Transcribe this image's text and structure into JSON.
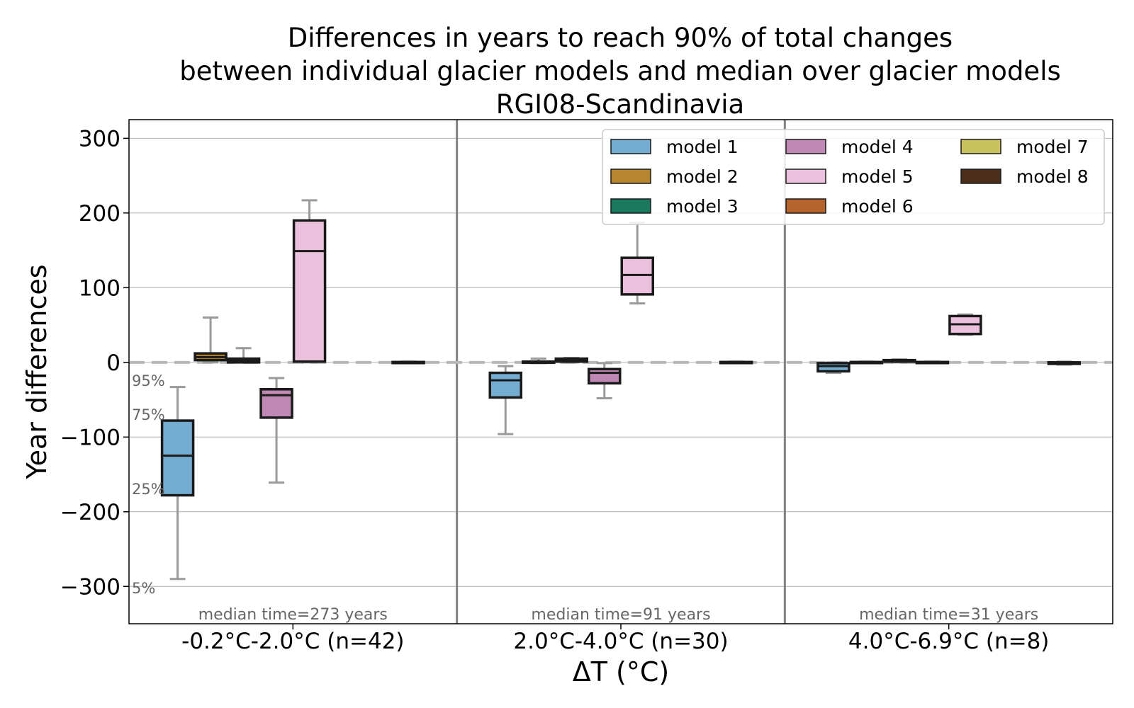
{
  "chart_data": {
    "type": "box",
    "title": [
      "Differences in years to reach 90% of total changes",
      "between individual glacier models and median over glacier models",
      "RGI08-Scandinavia"
    ],
    "xlabel": "ΔT (°C)",
    "ylabel": "Year differences",
    "ylim": [
      -350,
      325
    ],
    "yticks": [
      300,
      200,
      100,
      0,
      -100,
      -200,
      -300
    ],
    "ytick_labels": [
      "300",
      "200",
      "100",
      "0",
      "−100",
      "−200",
      "−300"
    ],
    "grid": true,
    "legend_position": "top-right",
    "percentile_labels": [
      "95%",
      "75%",
      "25%",
      "5%"
    ],
    "categories": [
      "-0.2°C-2.0°C (n=42)",
      "2.0°C-4.0°C (n=30)",
      "4.0°C-6.9°C (n=8)"
    ],
    "annotations": [
      "median time=273 years",
      "median time=91 years",
      "median time=31 years"
    ],
    "series": [
      {
        "name": "model 1",
        "color": "#74add1",
        "boxes": [
          {
            "p5": -290,
            "q1": -178,
            "median": -125,
            "q3": -78,
            "p95": -33
          },
          {
            "p5": -96,
            "q1": -47,
            "median": -24,
            "q3": -14,
            "p95": -5
          },
          {
            "p5": -14,
            "q1": -12,
            "median": -5,
            "q3": -1,
            "p95": 0
          }
        ]
      },
      {
        "name": "model 2",
        "color": "#b5862f",
        "boxes": [
          {
            "p5": 0,
            "q1": 3,
            "median": 7,
            "q3": 12,
            "p95": 60
          },
          {
            "p5": -1,
            "q1": -0.5,
            "median": 0,
            "q3": 1,
            "p95": 5
          },
          {
            "p5": -1,
            "q1": -0.5,
            "median": 0,
            "q3": 0.5,
            "p95": 1
          }
        ]
      },
      {
        "name": "model 3",
        "color": "#1b7a5e",
        "boxes": [
          {
            "p5": 0,
            "q1": 0,
            "median": 2,
            "q3": 5,
            "p95": 19
          },
          {
            "p5": 0,
            "q1": 1,
            "median": 3,
            "q3": 5,
            "p95": 6
          },
          {
            "p5": 0,
            "q1": 1,
            "median": 2,
            "q3": 3,
            "p95": 4
          }
        ]
      },
      {
        "name": "model 4",
        "color": "#bf88b5",
        "boxes": [
          {
            "p5": -161,
            "q1": -74,
            "median": -44,
            "q3": -36,
            "p95": -21
          },
          {
            "p5": -48,
            "q1": -28,
            "median": -14,
            "q3": -9,
            "p95": -1
          },
          {
            "p5": -1,
            "q1": -0.5,
            "median": 0,
            "q3": 0.5,
            "p95": 1
          }
        ]
      },
      {
        "name": "model 5",
        "color": "#ebc0dc",
        "boxes": [
          {
            "p5": 0,
            "q1": 1,
            "median": 149,
            "q3": 190,
            "p95": 217
          },
          {
            "p5": 79,
            "q1": 91,
            "median": 117,
            "q3": 140,
            "p95": 187
          },
          {
            "p5": 37,
            "q1": 38,
            "median": 51,
            "q3": 62,
            "p95": 64
          }
        ]
      },
      {
        "name": "model 6",
        "color": "#b5642b",
        "boxes": []
      },
      {
        "name": "model 7",
        "color": "#c9c25a",
        "boxes": []
      },
      {
        "name": "model 8",
        "color": "#4a2e1a",
        "boxes": [
          {
            "p5": -1,
            "q1": -0.5,
            "median": 0,
            "q3": 0.5,
            "p95": 1
          },
          {
            "p5": -1,
            "q1": -0.5,
            "median": 0,
            "q3": 0.5,
            "p95": 1
          },
          {
            "p5": -3,
            "q1": -2,
            "median": -1,
            "q3": 0,
            "p95": 1
          }
        ]
      }
    ]
  }
}
